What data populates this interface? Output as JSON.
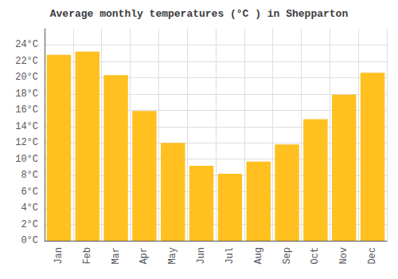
{
  "chart_data": {
    "type": "bar",
    "title": "Average monthly temperatures (°C ) in Shepparton",
    "categories": [
      "Jan",
      "Feb",
      "Mar",
      "Apr",
      "May",
      "Jun",
      "Jul",
      "Aug",
      "Sep",
      "Oct",
      "Nov",
      "Dec"
    ],
    "values": [
      22.8,
      23.2,
      20.3,
      15.9,
      12.0,
      9.2,
      8.2,
      9.7,
      11.8,
      14.9,
      17.9,
      20.6
    ],
    "color": "#FFC020",
    "ylim": [
      0,
      26
    ],
    "yticks": [
      {
        "value": 0,
        "label": "0°C"
      },
      {
        "value": 2,
        "label": "2°C"
      },
      {
        "value": 4,
        "label": "4°C"
      },
      {
        "value": 6,
        "label": "6°C"
      },
      {
        "value": 8,
        "label": "8°C"
      },
      {
        "value": 10,
        "label": "10°C"
      },
      {
        "value": 12,
        "label": "12°C"
      },
      {
        "value": 14,
        "label": "14°C"
      },
      {
        "value": 16,
        "label": "16°C"
      },
      {
        "value": 18,
        "label": "18°C"
      },
      {
        "value": 20,
        "label": "20°C"
      },
      {
        "value": 22,
        "label": "22°C"
      },
      {
        "value": 24,
        "label": "24°C"
      }
    ],
    "grid": true
  }
}
